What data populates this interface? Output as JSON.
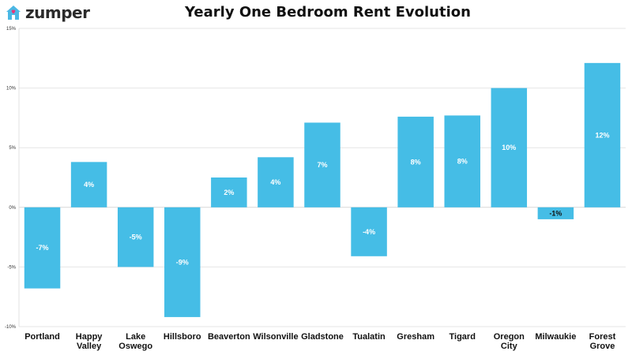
{
  "brand": {
    "name": "zumper",
    "color": "#4ab8e5",
    "accent": "#e8367a"
  },
  "chart_data": {
    "type": "bar",
    "title": "Yearly One Bedroom Rent Evolution",
    "xlabel": "",
    "ylabel": "",
    "ylim": [
      -10,
      15
    ],
    "yticks": [
      15,
      10,
      5,
      0,
      -5,
      -10
    ],
    "ytick_labels": [
      "15%",
      "10%",
      "5%",
      "0%",
      "-5%",
      "-10%"
    ],
    "grid": true,
    "categories": [
      [
        "Portland"
      ],
      [
        "Happy",
        "Valley"
      ],
      [
        "Lake",
        "Oswego"
      ],
      [
        "Hillsboro"
      ],
      [
        "Beaverton"
      ],
      [
        "Wilsonville"
      ],
      [
        "Gladstone"
      ],
      [
        "Tualatin"
      ],
      [
        "Gresham"
      ],
      [
        "Tigard"
      ],
      [
        "Oregon",
        "City"
      ],
      [
        "Milwaukie"
      ],
      [
        "Forest",
        "Grove"
      ]
    ],
    "values": [
      -6.8,
      3.8,
      -5.0,
      -9.2,
      2.5,
      4.2,
      7.1,
      -4.1,
      7.6,
      7.7,
      10.0,
      -1.0,
      12.1
    ],
    "data_labels": [
      "-7%",
      "4%",
      "-5%",
      "-9%",
      "2%",
      "4%",
      "7%",
      "-4%",
      "8%",
      "8%",
      "10%",
      "-1%",
      "12%"
    ],
    "bar_color": "#45bde6"
  }
}
